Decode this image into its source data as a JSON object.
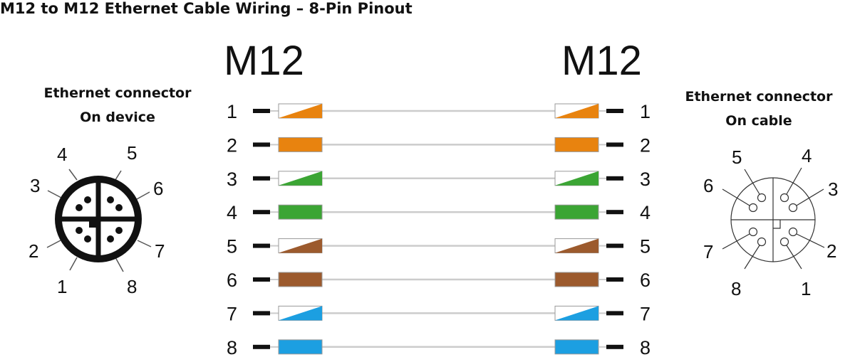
{
  "title": "M12 to M12 Ethernet Cable Wiring – 8-Pin Pinout",
  "left_header": "M12",
  "right_header": "M12",
  "left_connector": {
    "line1": "Ethernet connector",
    "line2": "On device"
  },
  "right_connector": {
    "line1": "Ethernet connector",
    "line2": "On cable"
  },
  "colors": {
    "orange": "#e8830f",
    "green": "#3ba534",
    "brown": "#9c5a2d",
    "blue": "#1c9fe1",
    "white": "#ffffff"
  },
  "wires": [
    {
      "pin": "1",
      "color": "orange",
      "striped": true
    },
    {
      "pin": "2",
      "color": "orange",
      "striped": false
    },
    {
      "pin": "3",
      "color": "green",
      "striped": true
    },
    {
      "pin": "4",
      "color": "green",
      "striped": false
    },
    {
      "pin": "5",
      "color": "brown",
      "striped": true
    },
    {
      "pin": "6",
      "color": "brown",
      "striped": false
    },
    {
      "pin": "7",
      "color": "blue",
      "striped": true
    },
    {
      "pin": "8",
      "color": "blue",
      "striped": false
    }
  ]
}
